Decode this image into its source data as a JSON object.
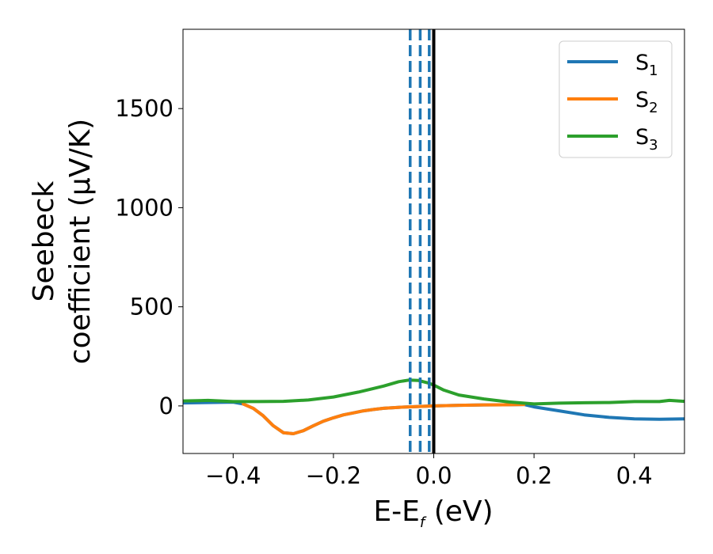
{
  "chart_data": {
    "type": "line",
    "title": "",
    "xlabel": {
      "main": "E-E",
      "sub": "f",
      "tail": " (eV)"
    },
    "ylabel": {
      "line1": "Seebeck",
      "line2": "coefficient  (μV/K)"
    },
    "xlim": [
      -0.5,
      0.5
    ],
    "ylim": [
      -240,
      1900
    ],
    "xticks": [
      -0.4,
      -0.2,
      0.0,
      0.2,
      0.4
    ],
    "xtick_labels": [
      "−0.4",
      "−0.2",
      "0.0",
      "0.2",
      "0.4"
    ],
    "yticks": [
      0,
      500,
      1000,
      1500
    ],
    "ytick_labels": [
      "0",
      "500",
      "1000",
      "1500"
    ],
    "grid": false,
    "legend_position": "top-right",
    "series": [
      {
        "name": "S",
        "name_sub": "1",
        "color": "#1f77b4",
        "x": [
          -0.5,
          -0.45,
          -0.4,
          -0.38,
          -0.36,
          -0.34,
          -0.32,
          -0.3,
          -0.28,
          -0.26,
          -0.24,
          -0.22,
          -0.2,
          -0.18,
          -0.16,
          -0.14,
          -0.12,
          -0.1,
          -0.08,
          -0.06,
          -0.04,
          -0.02,
          0.0,
          0.05,
          0.1,
          0.15,
          0.18,
          0.2,
          0.25,
          0.3,
          0.35,
          0.4,
          0.45,
          0.5
        ],
        "y": [
          15,
          17,
          19,
          10,
          -12,
          -50,
          -100,
          -135,
          -140,
          -125,
          -100,
          -77,
          -60,
          -45,
          -35,
          -25,
          -18,
          -12,
          -9,
          -6,
          -4,
          -2,
          0,
          3,
          5,
          6,
          7,
          -5,
          -25,
          -45,
          -58,
          -65,
          -67,
          -65
        ]
      },
      {
        "name": "S",
        "name_sub": "2",
        "color": "#ff7f0e",
        "x": [
          -0.38,
          -0.36,
          -0.34,
          -0.32,
          -0.3,
          -0.28,
          -0.26,
          -0.24,
          -0.22,
          -0.2,
          -0.18,
          -0.16,
          -0.14,
          -0.12,
          -0.1,
          -0.08,
          -0.06,
          -0.04,
          -0.02,
          0.0,
          0.05,
          0.1,
          0.15,
          0.18
        ],
        "y": [
          10,
          -12,
          -50,
          -100,
          -135,
          -140,
          -125,
          -100,
          -77,
          -60,
          -45,
          -35,
          -25,
          -18,
          -12,
          -9,
          -6,
          -4,
          -2,
          0,
          3,
          5,
          6,
          7
        ]
      },
      {
        "name": "S",
        "name_sub": "3",
        "color": "#2ca02c",
        "x": [
          -0.5,
          -0.45,
          -0.4,
          -0.35,
          -0.3,
          -0.25,
          -0.2,
          -0.15,
          -0.1,
          -0.07,
          -0.05,
          -0.03,
          -0.01,
          0.0,
          0.02,
          0.05,
          0.1,
          0.15,
          0.2,
          0.25,
          0.3,
          0.35,
          0.4,
          0.45,
          0.47,
          0.5
        ],
        "y": [
          25,
          28,
          22,
          22,
          23,
          30,
          45,
          70,
          100,
          122,
          130,
          128,
          115,
          105,
          80,
          55,
          35,
          20,
          10,
          14,
          16,
          17,
          22,
          22,
          28,
          23
        ]
      }
    ],
    "vertical_lines": [
      {
        "x": -0.047,
        "style": "dashed",
        "color": "#1f77b4"
      },
      {
        "x": -0.027,
        "style": "dashed",
        "color": "#1f77b4"
      },
      {
        "x": -0.009,
        "style": "dashed",
        "color": "#1f77b4"
      },
      {
        "x": 0.0,
        "style": "solid",
        "color": "#000000"
      }
    ]
  }
}
